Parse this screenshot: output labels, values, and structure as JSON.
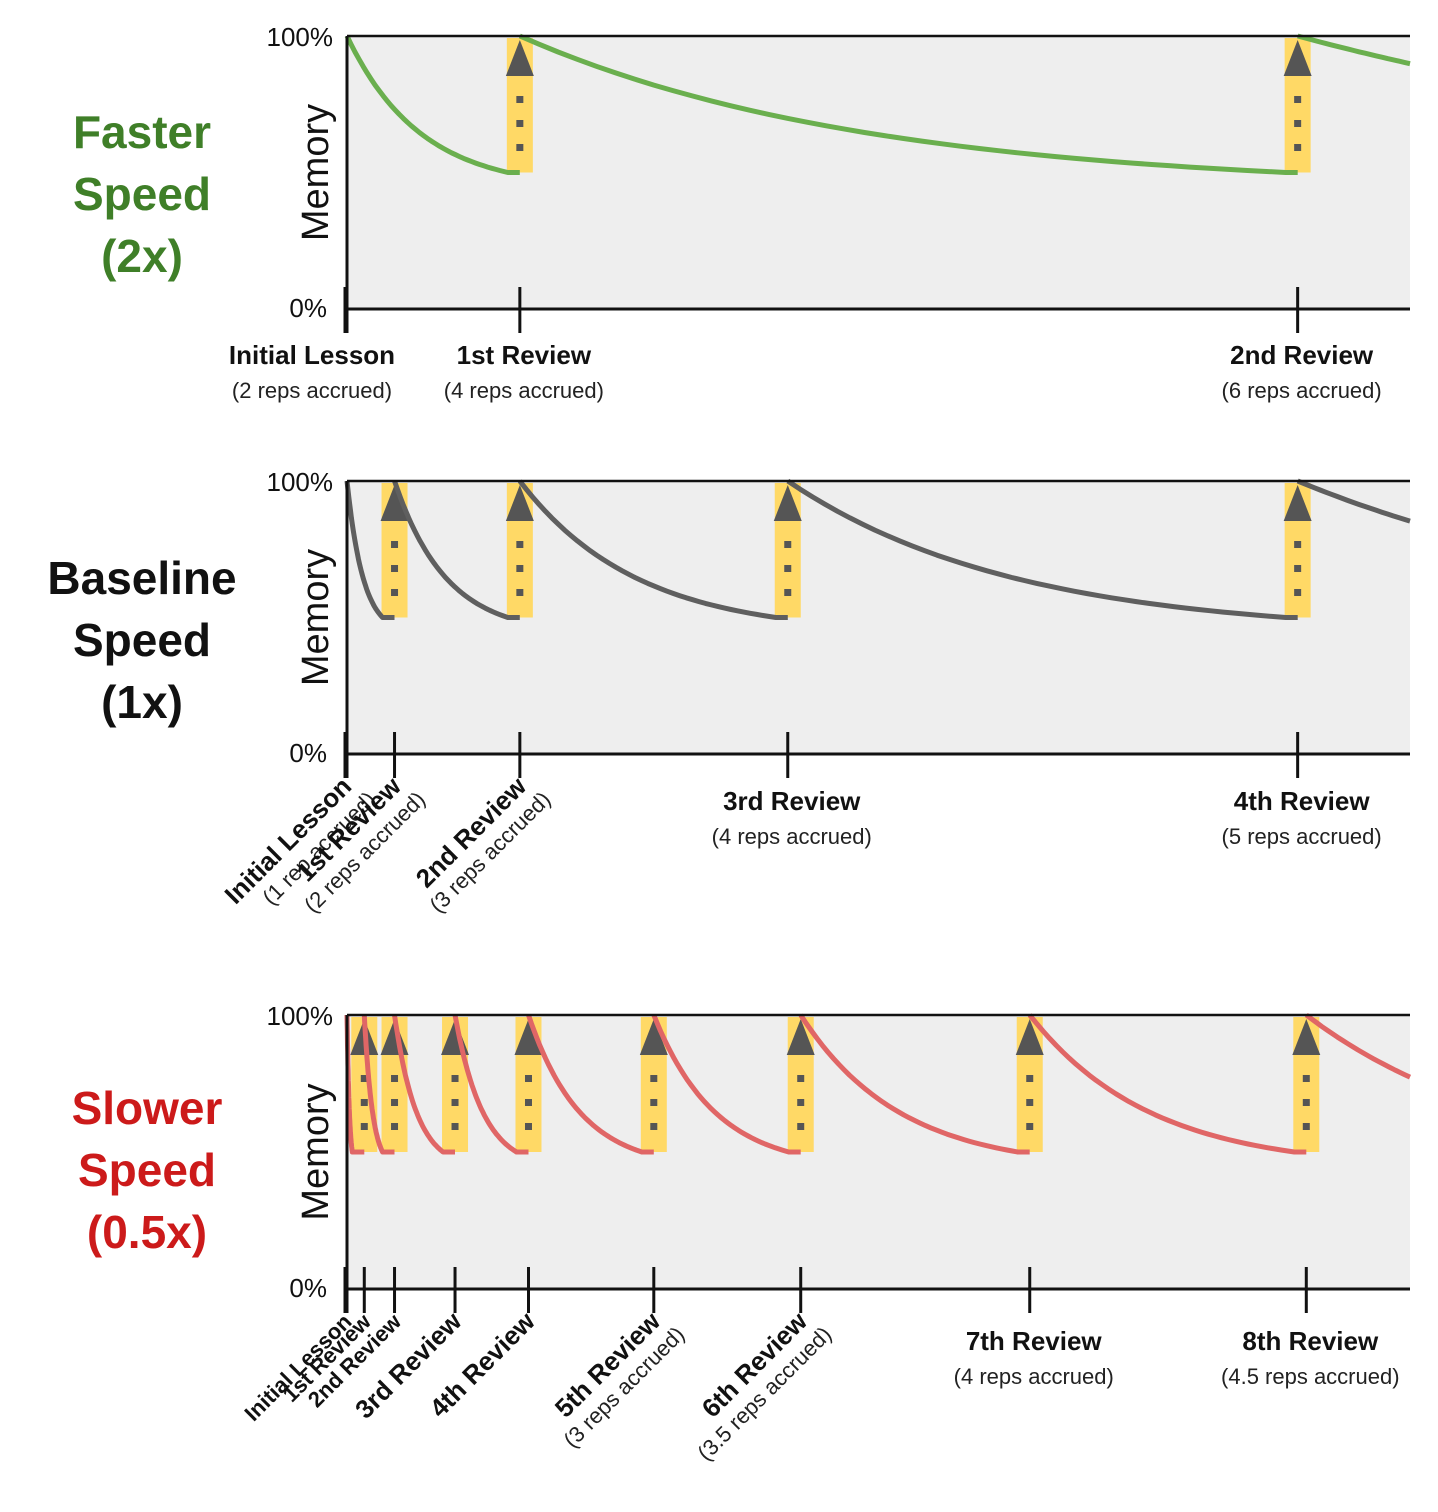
{
  "chart_data": [
    {
      "type": "line",
      "title": "Faster Speed (2x)",
      "title_lines": [
        "Faster",
        "Speed",
        "(2x)"
      ],
      "title_color": "#3f7f28",
      "line_color": "#6aaf4e",
      "ylabel": "Memory",
      "yticks": [
        "100%",
        "0%"
      ],
      "ylim": [
        0,
        100
      ],
      "review_threshold_pct": 50,
      "events": [
        {
          "label": "Initial Lesson",
          "sub": "(2 reps accrued)",
          "t": 0,
          "rotated": false
        },
        {
          "label": "1st Review",
          "sub": "(4 reps accrued)",
          "t": 2,
          "rotated": false
        },
        {
          "label": "2nd Review",
          "sub": "(6 reps accrued)",
          "t": 11,
          "rotated": false
        }
      ],
      "x_max": 12.3
    },
    {
      "type": "line",
      "title": "Baseline Speed (1x)",
      "title_lines": [
        "Baseline",
        "Speed",
        "(1x)"
      ],
      "title_color": "#111111",
      "line_color": "#5f5f5f",
      "ylabel": "Memory",
      "yticks": [
        "100%",
        "0%"
      ],
      "ylim": [
        0,
        100
      ],
      "review_threshold_pct": 50,
      "events": [
        {
          "label": "Initial Lesson",
          "sub": "(1 rep accrued)",
          "t": 0,
          "rotated": true
        },
        {
          "label": "1st Review",
          "sub": "(2 reps accrued)",
          "t": 0.55,
          "rotated": true
        },
        {
          "label": "2nd Review",
          "sub": "(3 reps accrued)",
          "t": 2,
          "rotated": true
        },
        {
          "label": "3rd Review",
          "sub": "(4 reps accrued)",
          "t": 5.1,
          "rotated": false
        },
        {
          "label": "4th Review",
          "sub": "(5 reps accrued)",
          "t": 11,
          "rotated": false
        }
      ],
      "x_max": 12.3
    },
    {
      "type": "line",
      "title": "Slower Speed (0.5x)",
      "title_lines": [
        "Slower",
        "Speed",
        "(0.5x)"
      ],
      "title_color": "#cc1a1a",
      "line_color": "#e06666",
      "ylabel": "Memory",
      "yticks": [
        "100%",
        "0%"
      ],
      "ylim": [
        0,
        100
      ],
      "review_threshold_pct": 50,
      "events": [
        {
          "label": "Initial Lesson",
          "sub": "",
          "t": 0,
          "rotated": true,
          "bold": false
        },
        {
          "label": "1st Review",
          "sub": "",
          "t": 0.2,
          "rotated": true,
          "bold": false
        },
        {
          "label": "2nd Review",
          "sub": "",
          "t": 0.55,
          "rotated": true,
          "bold": false
        },
        {
          "label": "3rd Review",
          "sub": "",
          "t": 1.25,
          "rotated": true,
          "bold": true
        },
        {
          "label": "4th Review",
          "sub": "",
          "t": 2.1,
          "rotated": true,
          "bold": true
        },
        {
          "label": "5th Review",
          "sub": "(3 reps accrued)",
          "t": 3.55,
          "rotated": true,
          "bold": true
        },
        {
          "label": "6th Review",
          "sub": "(3.5 reps accrued)",
          "t": 5.25,
          "rotated": true,
          "bold": true
        },
        {
          "label": "7th Review",
          "sub": "(4 reps accrued)",
          "t": 7.9,
          "rotated": false,
          "bold": true
        },
        {
          "label": "8th Review",
          "sub": "(4.5 reps accrued)",
          "t": 11.1,
          "rotated": false,
          "bold": true
        }
      ],
      "x_max": 12.3
    }
  ],
  "colors": {
    "panel_bg": "#eeeeee",
    "review_bar": "#ffd966",
    "arrow": "#555555",
    "axis": "#111111"
  }
}
